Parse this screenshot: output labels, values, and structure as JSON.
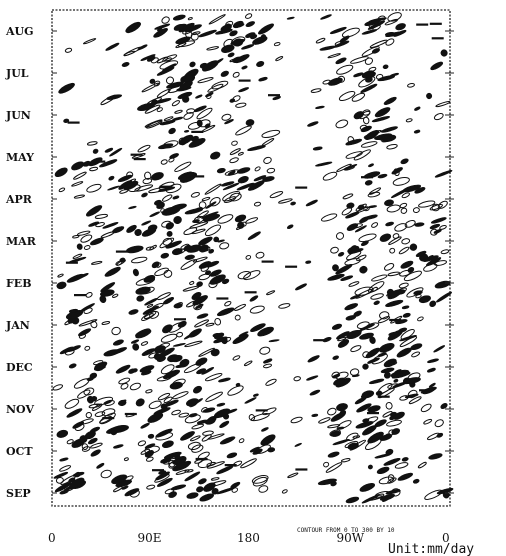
{
  "chart_data": {
    "type": "heatmap",
    "description_free": true,
    "y_months": [
      "AUG",
      "JUL",
      "JUN",
      "MAY",
      "APR",
      "MAR",
      "FEB",
      "JAN",
      "DEC",
      "NOV",
      "OCT",
      "SEP"
    ],
    "x_ticks": [
      "0",
      "90E",
      "180",
      "90W"
    ],
    "x_trailing_label": "0",
    "contour_note": "CONTOUR FROM 0 TO 300 BY 10",
    "unit_label": "Unit:mm/day",
    "axis_x_range_deg": [
      0,
      360
    ],
    "grid": false,
    "band_centers_deg": [
      40,
      110,
      165,
      285,
      340
    ],
    "band_strength": [
      0.55,
      0.95,
      0.65,
      0.9,
      0.5
    ],
    "contour_color": "#111111"
  }
}
